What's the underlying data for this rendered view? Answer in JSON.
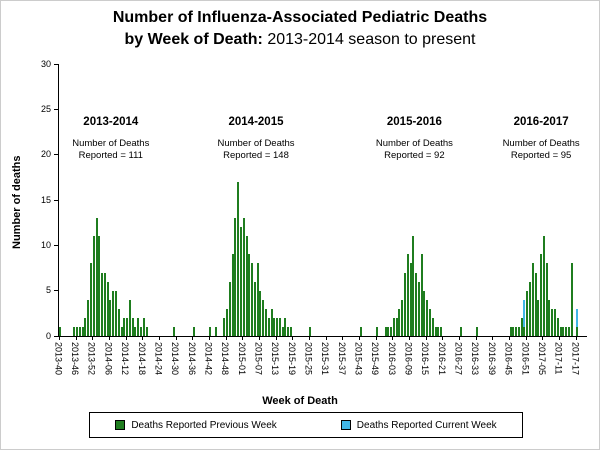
{
  "title": {
    "line1": "Number of Influenza-Associated Pediatric Deaths",
    "line2_bold": "by Week of Death:",
    "line2_rest": " 2013-2014 season to present"
  },
  "chart_data": {
    "type": "bar",
    "stacked": true,
    "title": "Number of Influenza-Associated Pediatric Deaths by Week of Death: 2013-2014 season to present",
    "xlabel": "Week of Death",
    "ylabel": "Number of deaths",
    "ylim": [
      0,
      30
    ],
    "yticks": [
      0,
      5,
      10,
      15,
      20,
      25,
      30
    ],
    "x_tick_every": 6,
    "grid": false,
    "legend_position": "bottom",
    "series": [
      {
        "name": "Deaths Reported Previous Week",
        "color": "#1f7d1f"
      },
      {
        "name": "Deaths Reported Current Week",
        "color": "#41b6e6"
      }
    ],
    "weeks_format": [
      "week",
      "deaths_reported_previous_week",
      "deaths_reported_current_week"
    ],
    "weeks": [
      [
        "2013-40",
        1,
        0
      ],
      [
        "2013-41",
        0,
        0
      ],
      [
        "2013-42",
        0,
        0
      ],
      [
        "2013-43",
        0,
        0
      ],
      [
        "2013-44",
        0,
        0
      ],
      [
        "2013-45",
        1,
        0
      ],
      [
        "2013-46",
        1,
        0
      ],
      [
        "2013-47",
        1,
        0
      ],
      [
        "2013-48",
        1,
        0
      ],
      [
        "2013-49",
        2,
        0
      ],
      [
        "2013-50",
        4,
        0
      ],
      [
        "2013-51",
        8,
        0
      ],
      [
        "2013-52",
        11,
        0
      ],
      [
        "2014-01",
        13,
        0
      ],
      [
        "2014-02",
        11,
        0
      ],
      [
        "2014-03",
        7,
        0
      ],
      [
        "2014-04",
        7,
        0
      ],
      [
        "2014-05",
        6,
        0
      ],
      [
        "2014-06",
        4,
        0
      ],
      [
        "2014-07",
        5,
        0
      ],
      [
        "2014-08",
        5,
        0
      ],
      [
        "2014-09",
        3,
        0
      ],
      [
        "2014-10",
        1,
        0
      ],
      [
        "2014-11",
        2,
        0
      ],
      [
        "2014-12",
        2,
        0
      ],
      [
        "2014-13",
        4,
        0
      ],
      [
        "2014-14",
        2,
        0
      ],
      [
        "2014-15",
        1,
        0
      ],
      [
        "2014-16",
        2,
        0
      ],
      [
        "2014-17",
        1,
        0
      ],
      [
        "2014-18",
        2,
        0
      ],
      [
        "2014-19",
        1,
        0
      ],
      [
        "2014-20",
        0,
        0
      ],
      [
        "2014-21",
        0,
        0
      ],
      [
        "2014-22",
        0,
        0
      ],
      [
        "2014-23",
        0,
        0
      ],
      [
        "2014-24",
        0,
        0
      ],
      [
        "2014-25",
        0,
        0
      ],
      [
        "2014-26",
        0,
        0
      ],
      [
        "2014-27",
        0,
        0
      ],
      [
        "2014-28",
        0,
        0
      ],
      [
        "2014-29",
        1,
        0
      ],
      [
        "2014-30",
        0,
        0
      ],
      [
        "2014-31",
        0,
        0
      ],
      [
        "2014-32",
        0,
        0
      ],
      [
        "2014-33",
        0,
        0
      ],
      [
        "2014-34",
        0,
        0
      ],
      [
        "2014-35",
        0,
        0
      ],
      [
        "2014-36",
        1,
        0
      ],
      [
        "2014-37",
        0,
        0
      ],
      [
        "2014-38",
        0,
        0
      ],
      [
        "2014-39",
        0,
        0
      ],
      [
        "2014-40",
        0,
        0
      ],
      [
        "2014-41",
        0,
        0
      ],
      [
        "2014-42",
        1,
        0
      ],
      [
        "2014-43",
        0,
        0
      ],
      [
        "2014-44",
        1,
        0
      ],
      [
        "2014-45",
        0,
        0
      ],
      [
        "2014-46",
        0,
        0
      ],
      [
        "2014-47",
        2,
        0
      ],
      [
        "2014-48",
        3,
        0
      ],
      [
        "2014-49",
        6,
        0
      ],
      [
        "2014-50",
        9,
        0
      ],
      [
        "2014-51",
        13,
        0
      ],
      [
        "2014-52",
        17,
        0
      ],
      [
        "2014-53",
        12,
        0
      ],
      [
        "2015-01",
        13,
        0
      ],
      [
        "2015-02",
        11,
        0
      ],
      [
        "2015-03",
        9,
        0
      ],
      [
        "2015-04",
        8,
        0
      ],
      [
        "2015-05",
        6,
        0
      ],
      [
        "2015-06",
        8,
        0
      ],
      [
        "2015-07",
        5,
        0
      ],
      [
        "2015-08",
        4,
        0
      ],
      [
        "2015-09",
        3,
        0
      ],
      [
        "2015-10",
        2,
        0
      ],
      [
        "2015-11",
        3,
        0
      ],
      [
        "2015-12",
        2,
        0
      ],
      [
        "2015-13",
        2,
        0
      ],
      [
        "2015-14",
        2,
        0
      ],
      [
        "2015-15",
        1,
        0
      ],
      [
        "2015-16",
        2,
        0
      ],
      [
        "2015-17",
        1,
        0
      ],
      [
        "2015-18",
        1,
        0
      ],
      [
        "2015-19",
        0,
        0
      ],
      [
        "2015-20",
        0,
        0
      ],
      [
        "2015-21",
        0,
        0
      ],
      [
        "2015-22",
        0,
        0
      ],
      [
        "2015-23",
        0,
        0
      ],
      [
        "2015-24",
        0,
        0
      ],
      [
        "2015-25",
        1,
        0
      ],
      [
        "2015-26",
        0,
        0
      ],
      [
        "2015-27",
        0,
        0
      ],
      [
        "2015-28",
        0,
        0
      ],
      [
        "2015-29",
        0,
        0
      ],
      [
        "2015-30",
        0,
        0
      ],
      [
        "2015-31",
        0,
        0
      ],
      [
        "2015-32",
        0,
        0
      ],
      [
        "2015-33",
        0,
        0
      ],
      [
        "2015-34",
        0,
        0
      ],
      [
        "2015-35",
        0,
        0
      ],
      [
        "2015-36",
        0,
        0
      ],
      [
        "2015-37",
        0,
        0
      ],
      [
        "2015-38",
        0,
        0
      ],
      [
        "2015-39",
        0,
        0
      ],
      [
        "2015-40",
        0,
        0
      ],
      [
        "2015-41",
        0,
        0
      ],
      [
        "2015-42",
        0,
        0
      ],
      [
        "2015-43",
        1,
        0
      ],
      [
        "2015-44",
        0,
        0
      ],
      [
        "2015-45",
        0,
        0
      ],
      [
        "2015-46",
        0,
        0
      ],
      [
        "2015-47",
        0,
        0
      ],
      [
        "2015-48",
        0,
        0
      ],
      [
        "2015-49",
        1,
        0
      ],
      [
        "2015-50",
        0,
        0
      ],
      [
        "2015-51",
        0,
        0
      ],
      [
        "2015-52",
        1,
        0
      ],
      [
        "2016-01",
        1,
        0
      ],
      [
        "2016-02",
        1,
        0
      ],
      [
        "2016-03",
        2,
        0
      ],
      [
        "2016-04",
        2,
        0
      ],
      [
        "2016-05",
        3,
        0
      ],
      [
        "2016-06",
        4,
        0
      ],
      [
        "2016-07",
        7,
        0
      ],
      [
        "2016-08",
        9,
        0
      ],
      [
        "2016-09",
        8,
        0
      ],
      [
        "2016-10",
        11,
        0
      ],
      [
        "2016-11",
        7,
        0
      ],
      [
        "2016-12",
        6,
        0
      ],
      [
        "2016-13",
        9,
        0
      ],
      [
        "2016-14",
        5,
        0
      ],
      [
        "2016-15",
        4,
        0
      ],
      [
        "2016-16",
        3,
        0
      ],
      [
        "2016-17",
        2,
        0
      ],
      [
        "2016-18",
        1,
        0
      ],
      [
        "2016-19",
        1,
        0
      ],
      [
        "2016-20",
        1,
        0
      ],
      [
        "2016-21",
        0,
        0
      ],
      [
        "2016-22",
        0,
        0
      ],
      [
        "2016-23",
        0,
        0
      ],
      [
        "2016-24",
        0,
        0
      ],
      [
        "2016-25",
        0,
        0
      ],
      [
        "2016-26",
        0,
        0
      ],
      [
        "2016-27",
        1,
        0
      ],
      [
        "2016-28",
        0,
        0
      ],
      [
        "2016-29",
        0,
        0
      ],
      [
        "2016-30",
        0,
        0
      ],
      [
        "2016-31",
        0,
        0
      ],
      [
        "2016-32",
        0,
        0
      ],
      [
        "2016-33",
        1,
        0
      ],
      [
        "2016-34",
        0,
        0
      ],
      [
        "2016-35",
        0,
        0
      ],
      [
        "2016-36",
        0,
        0
      ],
      [
        "2016-37",
        0,
        0
      ],
      [
        "2016-38",
        0,
        0
      ],
      [
        "2016-39",
        0,
        0
      ],
      [
        "2016-40",
        0,
        0
      ],
      [
        "2016-41",
        0,
        0
      ],
      [
        "2016-42",
        0,
        0
      ],
      [
        "2016-43",
        0,
        0
      ],
      [
        "2016-44",
        0,
        0
      ],
      [
        "2016-45",
        1,
        0
      ],
      [
        "2016-46",
        1,
        0
      ],
      [
        "2016-47",
        1,
        0
      ],
      [
        "2016-48",
        1,
        0
      ],
      [
        "2016-49",
        2,
        0
      ],
      [
        "2016-50",
        1,
        3
      ],
      [
        "2016-51",
        5,
        0
      ],
      [
        "2016-52",
        6,
        0
      ],
      [
        "2017-01",
        8,
        0
      ],
      [
        "2017-02",
        7,
        0
      ],
      [
        "2017-03",
        4,
        0
      ],
      [
        "2017-04",
        9,
        0
      ],
      [
        "2017-05",
        11,
        0
      ],
      [
        "2017-06",
        8,
        0
      ],
      [
        "2017-07",
        4,
        0
      ],
      [
        "2017-08",
        3,
        0
      ],
      [
        "2017-09",
        3,
        0
      ],
      [
        "2017-10",
        2,
        0
      ],
      [
        "2017-11",
        1,
        0
      ],
      [
        "2017-12",
        1,
        0
      ],
      [
        "2017-13",
        1,
        0
      ],
      [
        "2017-14",
        1,
        0
      ],
      [
        "2017-15",
        8,
        0
      ],
      [
        "2017-16",
        0,
        0
      ],
      [
        "2017-17",
        1,
        2
      ],
      [
        "2017-18",
        0,
        0
      ],
      [
        "2017-19",
        0,
        0
      ],
      [
        "2017-20",
        0,
        0
      ]
    ],
    "season_annotations": [
      {
        "season": "2013-2014",
        "line1": "Number of Deaths",
        "line2": "Reported = 111",
        "x_pct": 10
      },
      {
        "season": "2014-2015",
        "line1": "Number of Deaths",
        "line2": "Reported = 148",
        "x_pct": 37.5
      },
      {
        "season": "2015-2016",
        "line1": "Number of Deaths",
        "line2": "Reported = 92",
        "x_pct": 67.5
      },
      {
        "season": "2016-2017",
        "line1": "Number of Deaths",
        "line2": "Reported = 95",
        "x_pct": 91.5
      }
    ]
  },
  "legend": {
    "items": [
      {
        "label": "Deaths Reported Previous Week",
        "color": "#1f7d1f"
      },
      {
        "label": "Deaths Reported Current Week",
        "color": "#41b6e6"
      }
    ]
  }
}
